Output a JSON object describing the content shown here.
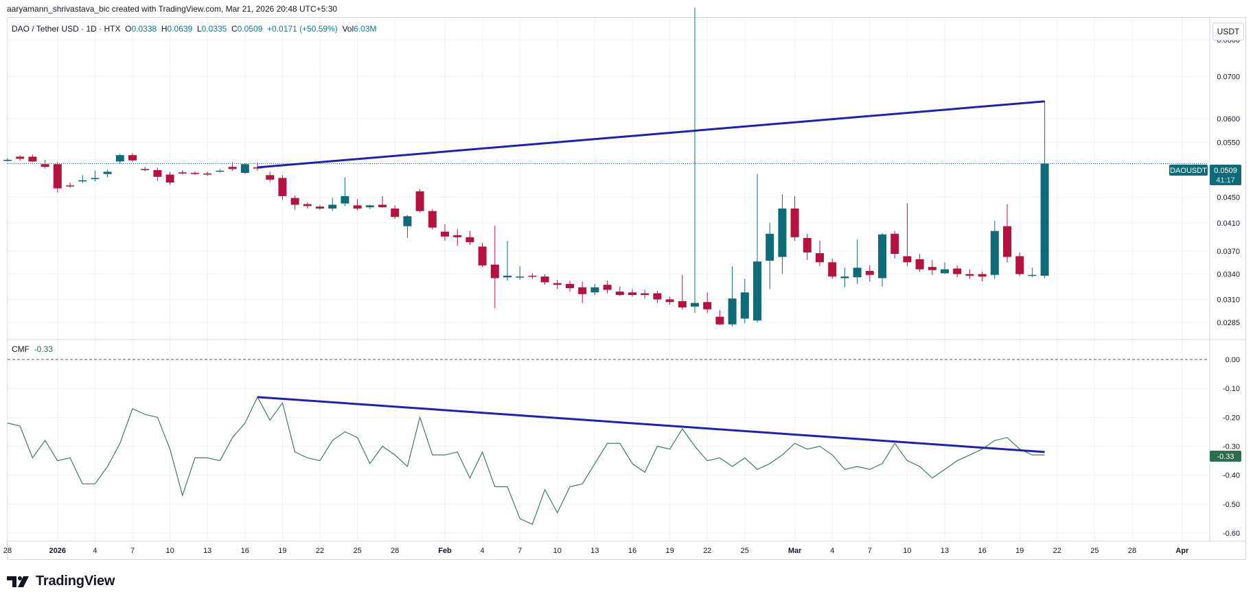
{
  "header": {
    "credit": "aaryamann_shrivastava_bic created with TradingView.com, Mar 21, 2026 20:48 UTC+5:30"
  },
  "legend": {
    "symbol": "DAO / Tether USD · 1D · HTX",
    "o_label": "O",
    "o": "0.0338",
    "h_label": "H",
    "h": "0.0639",
    "l_label": "L",
    "l": "0.0335",
    "c_label": "C",
    "c": "0.0509",
    "change": "+0.0171 (+50.59%)",
    "vol_label": "Vol",
    "vol": "6.03M"
  },
  "currency_button": "USDT",
  "price_tag": {
    "symbol": "DAOUSDT",
    "price": "0.0509",
    "countdown": "41:17"
  },
  "cmf_legend": {
    "name": "CMF",
    "value": "-0.33"
  },
  "cmf_tag": "-0.33",
  "brand": {
    "name": "TradingView"
  },
  "colors": {
    "up": "#0f6b78",
    "down": "#b5123f",
    "trendline": "#1f1fb4",
    "cmf_line": "#3f7a5e",
    "grid": "#eef0f3"
  },
  "chart_data": [
    {
      "type": "candlestick",
      "title": "DAO / Tether USD · 1D · HTX",
      "y_ticks": [
        "0.0800",
        "0.0700",
        "0.0600",
        "0.0550",
        "0.0450",
        "0.0410",
        "0.0370",
        "0.0340",
        "0.0310",
        "0.0285"
      ],
      "log_scale": true,
      "x_ticks": [
        "28",
        "2026",
        "4",
        "7",
        "10",
        "13",
        "16",
        "19",
        "22",
        "25",
        "28",
        "Feb",
        "4",
        "7",
        "10",
        "13",
        "16",
        "19",
        "22",
        "25",
        "Mar",
        "4",
        "7",
        "10",
        "13",
        "16",
        "19",
        "22",
        "25",
        "28",
        "Apr"
      ],
      "candles": [
        [
          "2025-12-28",
          0.0516,
          0.0519,
          0.0513,
          0.0516
        ],
        [
          "2025-12-29",
          0.0522,
          0.0525,
          0.0514,
          0.0518
        ],
        [
          "2025-12-30",
          0.0522,
          0.0526,
          0.0512,
          0.0513
        ],
        [
          "2025-12-31",
          0.0508,
          0.0516,
          0.05,
          0.0503
        ],
        [
          "2026-01-01",
          0.0508,
          0.0512,
          0.0458,
          0.0465
        ],
        [
          "2026-01-02",
          0.047,
          0.0475,
          0.0466,
          0.0469
        ],
        [
          "2026-01-03",
          0.0477,
          0.0488,
          0.0474,
          0.0479
        ],
        [
          "2026-01-04",
          0.0481,
          0.0496,
          0.0477,
          0.0483
        ],
        [
          "2026-01-05",
          0.049,
          0.0498,
          0.0484,
          0.0494
        ],
        [
          "2026-01-06",
          0.0513,
          0.0528,
          0.0509,
          0.0525
        ],
        [
          "2026-01-07",
          0.0525,
          0.0529,
          0.0512,
          0.0515
        ],
        [
          "2026-01-08",
          0.0499,
          0.0503,
          0.0495,
          0.0497
        ],
        [
          "2026-01-09",
          0.0497,
          0.0501,
          0.0478,
          0.0485
        ],
        [
          "2026-01-10",
          0.0489,
          0.0494,
          0.0471,
          0.0475
        ],
        [
          "2026-01-11",
          0.0493,
          0.0497,
          0.0489,
          0.0491
        ],
        [
          "2026-01-12",
          0.0492,
          0.0495,
          0.0488,
          0.049
        ],
        [
          "2026-01-13",
          0.0491,
          0.0494,
          0.0487,
          0.0489
        ],
        [
          "2026-01-14",
          0.0495,
          0.0499,
          0.0493,
          0.0496
        ],
        [
          "2026-01-15",
          0.0503,
          0.0512,
          0.0496,
          0.0499
        ],
        [
          "2026-01-16",
          0.0492,
          0.051,
          0.049,
          0.0508
        ],
        [
          "2026-01-17",
          0.0502,
          0.0511,
          0.0496,
          0.05
        ],
        [
          "2026-01-18",
          0.0488,
          0.0494,
          0.0476,
          0.048
        ],
        [
          "2026-01-19",
          0.0483,
          0.0488,
          0.0446,
          0.0452
        ],
        [
          "2026-01-20",
          0.0449,
          0.0453,
          0.043,
          0.0438
        ],
        [
          "2026-01-21",
          0.0439,
          0.0442,
          0.0432,
          0.0436
        ],
        [
          "2026-01-22",
          0.0435,
          0.0438,
          0.043,
          0.0432
        ],
        [
          "2026-01-23",
          0.0432,
          0.0449,
          0.0428,
          0.0438
        ],
        [
          "2026-01-24",
          0.044,
          0.0484,
          0.0436,
          0.0452
        ],
        [
          "2026-01-25",
          0.0437,
          0.0447,
          0.0429,
          0.0432
        ],
        [
          "2026-01-26",
          0.0434,
          0.0438,
          0.0431,
          0.0437
        ],
        [
          "2026-01-27",
          0.0438,
          0.0452,
          0.0433,
          0.0434
        ],
        [
          "2026-01-28",
          0.0432,
          0.0437,
          0.0416,
          0.0419
        ],
        [
          "2026-01-29",
          0.0405,
          0.0422,
          0.0388,
          0.042
        ],
        [
          "2026-01-30",
          0.046,
          0.0464,
          0.0426,
          0.0428
        ],
        [
          "2026-01-31",
          0.0428,
          0.0431,
          0.04,
          0.0403
        ],
        [
          "2026-02-01",
          0.0397,
          0.0408,
          0.0384,
          0.039
        ],
        [
          "2026-02-02",
          0.0392,
          0.0401,
          0.0377,
          0.0389
        ],
        [
          "2026-02-03",
          0.0389,
          0.0398,
          0.0378,
          0.0382
        ],
        [
          "2026-02-04",
          0.0376,
          0.0381,
          0.0349,
          0.0351
        ],
        [
          "2026-02-05",
          0.0352,
          0.0406,
          0.03,
          0.0335
        ],
        [
          "2026-02-06",
          0.0336,
          0.0384,
          0.0332,
          0.0338
        ],
        [
          "2026-02-07",
          0.0337,
          0.035,
          0.0333,
          0.0337
        ],
        [
          "2026-02-08",
          0.0338,
          0.0341,
          0.0334,
          0.0337
        ],
        [
          "2026-02-09",
          0.0337,
          0.034,
          0.0327,
          0.033
        ],
        [
          "2026-02-10",
          0.0329,
          0.0333,
          0.0322,
          0.0327
        ],
        [
          "2026-02-11",
          0.0328,
          0.0332,
          0.0319,
          0.0323
        ],
        [
          "2026-02-12",
          0.0324,
          0.0331,
          0.0306,
          0.0316
        ],
        [
          "2026-02-13",
          0.0318,
          0.0328,
          0.0315,
          0.0324
        ],
        [
          "2026-02-14",
          0.0327,
          0.0332,
          0.0317,
          0.0321
        ],
        [
          "2026-02-15",
          0.0319,
          0.0325,
          0.0314,
          0.0315
        ],
        [
          "2026-02-16",
          0.0318,
          0.0322,
          0.0313,
          0.0315
        ],
        [
          "2026-02-17",
          0.0317,
          0.0321,
          0.0311,
          0.0315
        ],
        [
          "2026-02-18",
          0.0317,
          0.032,
          0.0306,
          0.031
        ],
        [
          "2026-02-19",
          0.031,
          0.0313,
          0.0304,
          0.0307
        ],
        [
          "2026-02-20",
          0.0308,
          0.0339,
          0.0299,
          0.0301
        ],
        [
          "2026-02-21",
          0.0302,
          0.09,
          0.0295,
          0.0306
        ],
        [
          "2026-02-22",
          0.0307,
          0.0318,
          0.0295,
          0.0299
        ],
        [
          "2026-02-23",
          0.0291,
          0.0298,
          0.0282,
          0.0283
        ],
        [
          "2026-02-24",
          0.0283,
          0.035,
          0.0281,
          0.0311
        ],
        [
          "2026-02-25",
          0.0289,
          0.0334,
          0.0284,
          0.0318
        ],
        [
          "2026-02-26",
          0.0287,
          0.049,
          0.0285,
          0.0356
        ],
        [
          "2026-02-27",
          0.0357,
          0.041,
          0.0322,
          0.0394
        ],
        [
          "2026-02-28",
          0.0362,
          0.0455,
          0.034,
          0.0432
        ],
        [
          "2026-03-01",
          0.0432,
          0.0452,
          0.0384,
          0.0389
        ],
        [
          "2026-03-02",
          0.0388,
          0.0394,
          0.0358,
          0.0368
        ],
        [
          "2026-03-03",
          0.0367,
          0.0384,
          0.035,
          0.0355
        ],
        [
          "2026-03-04",
          0.0355,
          0.036,
          0.0334,
          0.0337
        ],
        [
          "2026-03-05",
          0.0335,
          0.0348,
          0.0324,
          0.0337
        ],
        [
          "2026-03-06",
          0.0336,
          0.0386,
          0.0328,
          0.0348
        ],
        [
          "2026-03-07",
          0.0344,
          0.0351,
          0.0331,
          0.0339
        ],
        [
          "2026-03-08",
          0.0335,
          0.0395,
          0.0325,
          0.0393
        ],
        [
          "2026-03-09",
          0.0394,
          0.0398,
          0.036,
          0.0366
        ],
        [
          "2026-03-10",
          0.0363,
          0.044,
          0.035,
          0.0355
        ],
        [
          "2026-03-11",
          0.0359,
          0.0366,
          0.0343,
          0.0346
        ],
        [
          "2026-03-12",
          0.0349,
          0.0358,
          0.0339,
          0.0345
        ],
        [
          "2026-03-13",
          0.0341,
          0.0355,
          0.034,
          0.0346
        ],
        [
          "2026-03-14",
          0.0347,
          0.0351,
          0.0336,
          0.034
        ],
        [
          "2026-03-15",
          0.034,
          0.0346,
          0.0334,
          0.0338
        ],
        [
          "2026-03-16",
          0.034,
          0.0343,
          0.0331,
          0.0337
        ],
        [
          "2026-03-17",
          0.0339,
          0.0413,
          0.0334,
          0.0398
        ],
        [
          "2026-03-18",
          0.0405,
          0.0439,
          0.0355,
          0.0362
        ],
        [
          "2026-03-19",
          0.0363,
          0.0368,
          0.0338,
          0.034
        ],
        [
          "2026-03-20",
          0.0339,
          0.0348,
          0.0336,
          0.0339
        ],
        [
          "2026-03-21",
          0.0338,
          0.0639,
          0.0335,
          0.0509
        ]
      ]
    },
    {
      "type": "line",
      "name": "CMF",
      "y_ticks": [
        "0.00",
        "-0.10",
        "-0.20",
        "-0.30",
        "-0.40",
        "-0.50",
        "-0.60"
      ],
      "ylim": [
        -0.62,
        0.02
      ],
      "values": [
        -0.22,
        -0.23,
        -0.34,
        -0.28,
        -0.35,
        -0.34,
        -0.43,
        -0.43,
        -0.37,
        -0.29,
        -0.17,
        -0.19,
        -0.2,
        -0.31,
        -0.47,
        -0.34,
        -0.34,
        -0.35,
        -0.27,
        -0.22,
        -0.13,
        -0.21,
        -0.15,
        -0.32,
        -0.34,
        -0.35,
        -0.28,
        -0.25,
        -0.27,
        -0.36,
        -0.3,
        -0.33,
        -0.37,
        -0.2,
        -0.33,
        -0.33,
        -0.32,
        -0.41,
        -0.32,
        -0.44,
        -0.44,
        -0.55,
        -0.57,
        -0.45,
        -0.53,
        -0.44,
        -0.43,
        -0.36,
        -0.29,
        -0.29,
        -0.36,
        -0.39,
        -0.3,
        -0.31,
        -0.24,
        -0.3,
        -0.35,
        -0.34,
        -0.37,
        -0.34,
        -0.38,
        -0.36,
        -0.33,
        -0.29,
        -0.31,
        -0.3,
        -0.33,
        -0.38,
        -0.37,
        -0.38,
        -0.36,
        -0.29,
        -0.35,
        -0.37,
        -0.41,
        -0.38,
        -0.35,
        -0.33,
        -0.31,
        -0.28,
        -0.27,
        -0.31,
        -0.33,
        -0.33
      ]
    }
  ],
  "trendlines": {
    "price": {
      "from": [
        "2026-01-17",
        0.0502
      ],
      "to": [
        "2026-03-21",
        0.0639
      ]
    },
    "cmf": {
      "from": [
        "2026-01-17",
        -0.13
      ],
      "to": [
        "2026-03-21",
        -0.32
      ]
    }
  }
}
